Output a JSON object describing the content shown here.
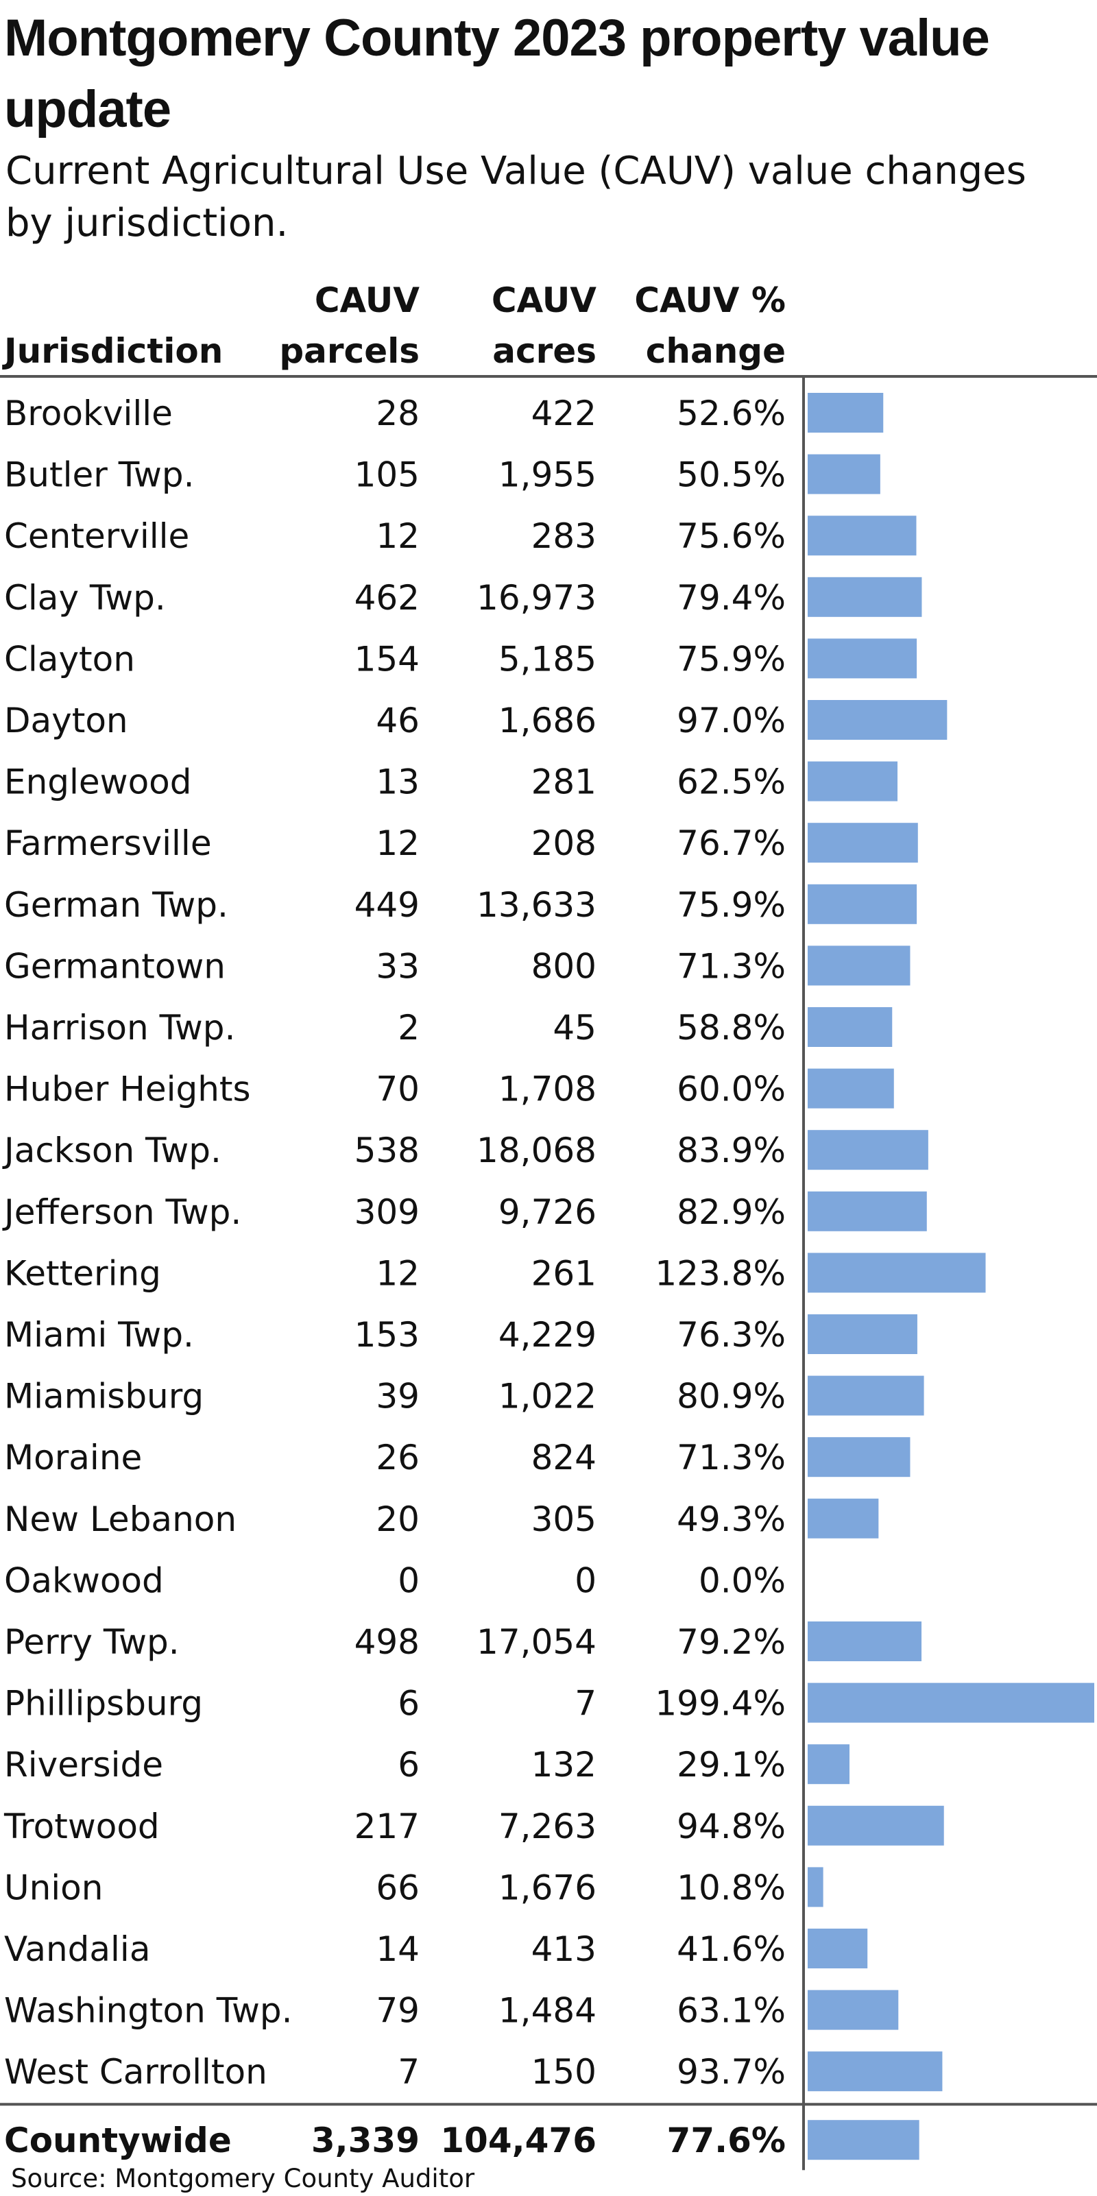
{
  "title": "Montgomery County 2023 property value update",
  "subtitle": "Current Agricultural Use Value (CAUV) value changes by jurisdiction.",
  "source": "Source: Montgomery County Auditor",
  "colors": {
    "bar": "#7ea7dc",
    "text": "#111111",
    "rule": "#555555"
  },
  "chart_data": {
    "type": "table",
    "columns": [
      {
        "lines": [
          "",
          "Jurisdiction"
        ],
        "align": "left"
      },
      {
        "lines": [
          "CAUV",
          "parcels"
        ],
        "align": "right"
      },
      {
        "lines": [
          "CAUV",
          "acres"
        ],
        "align": "right"
      },
      {
        "lines": [
          "CAUV %",
          "change"
        ],
        "align": "right"
      }
    ],
    "bar_series": "CAUV % change",
    "rows": [
      {
        "jurisdiction": "Brookville",
        "parcels": "28",
        "acres": "422",
        "change": 52.6,
        "change_label": "52.6%"
      },
      {
        "jurisdiction": "Butler Twp.",
        "parcels": "105",
        "acres": "1,955",
        "change": 50.5,
        "change_label": "50.5%"
      },
      {
        "jurisdiction": "Centerville",
        "parcels": "12",
        "acres": "283",
        "change": 75.6,
        "change_label": "75.6%"
      },
      {
        "jurisdiction": "Clay Twp.",
        "parcels": "462",
        "acres": "16,973",
        "change": 79.4,
        "change_label": "79.4%"
      },
      {
        "jurisdiction": "Clayton",
        "parcels": "154",
        "acres": "5,185",
        "change": 75.9,
        "change_label": "75.9%"
      },
      {
        "jurisdiction": "Dayton",
        "parcels": "46",
        "acres": "1,686",
        "change": 97.0,
        "change_label": "97.0%"
      },
      {
        "jurisdiction": "Englewood",
        "parcels": "13",
        "acres": "281",
        "change": 62.5,
        "change_label": "62.5%"
      },
      {
        "jurisdiction": "Farmersville",
        "parcels": "12",
        "acres": "208",
        "change": 76.7,
        "change_label": "76.7%"
      },
      {
        "jurisdiction": "German Twp.",
        "parcels": "449",
        "acres": "13,633",
        "change": 75.9,
        "change_label": "75.9%"
      },
      {
        "jurisdiction": "Germantown",
        "parcels": "33",
        "acres": "800",
        "change": 71.3,
        "change_label": "71.3%"
      },
      {
        "jurisdiction": "Harrison Twp.",
        "parcels": "2",
        "acres": "45",
        "change": 58.8,
        "change_label": "58.8%"
      },
      {
        "jurisdiction": "Huber Heights",
        "parcels": "70",
        "acres": "1,708",
        "change": 60.0,
        "change_label": "60.0%"
      },
      {
        "jurisdiction": "Jackson Twp.",
        "parcels": "538",
        "acres": "18,068",
        "change": 83.9,
        "change_label": "83.9%"
      },
      {
        "jurisdiction": "Jefferson Twp.",
        "parcels": "309",
        "acres": "9,726",
        "change": 82.9,
        "change_label": "82.9%"
      },
      {
        "jurisdiction": "Kettering",
        "parcels": "12",
        "acres": "261",
        "change": 123.8,
        "change_label": "123.8%"
      },
      {
        "jurisdiction": "Miami Twp.",
        "parcels": "153",
        "acres": "4,229",
        "change": 76.3,
        "change_label": "76.3%"
      },
      {
        "jurisdiction": "Miamisburg",
        "parcels": "39",
        "acres": "1,022",
        "change": 80.9,
        "change_label": "80.9%"
      },
      {
        "jurisdiction": "Moraine",
        "parcels": "26",
        "acres": "824",
        "change": 71.3,
        "change_label": "71.3%"
      },
      {
        "jurisdiction": "New Lebanon",
        "parcels": "20",
        "acres": "305",
        "change": 49.3,
        "change_label": "49.3%"
      },
      {
        "jurisdiction": "Oakwood",
        "parcels": "0",
        "acres": "0",
        "change": 0.0,
        "change_label": "0.0%"
      },
      {
        "jurisdiction": "Perry Twp.",
        "parcels": "498",
        "acres": "17,054",
        "change": 79.2,
        "change_label": "79.2%"
      },
      {
        "jurisdiction": "Phillipsburg",
        "parcels": "6",
        "acres": "7",
        "change": 199.4,
        "change_label": "199.4%"
      },
      {
        "jurisdiction": "Riverside",
        "parcels": "6",
        "acres": "132",
        "change": 29.1,
        "change_label": "29.1%"
      },
      {
        "jurisdiction": "Trotwood",
        "parcels": "217",
        "acres": "7,263",
        "change": 94.8,
        "change_label": "94.8%"
      },
      {
        "jurisdiction": "Union",
        "parcels": "66",
        "acres": "1,676",
        "change": 10.8,
        "change_label": "10.8%"
      },
      {
        "jurisdiction": "Vandalia",
        "parcels": "14",
        "acres": "413",
        "change": 41.6,
        "change_label": "41.6%"
      },
      {
        "jurisdiction": "Washington Twp.",
        "parcels": "79",
        "acres": "1,484",
        "change": 63.1,
        "change_label": "63.1%"
      },
      {
        "jurisdiction": "West Carrollton",
        "parcels": "7",
        "acres": "150",
        "change": 93.7,
        "change_label": "93.7%"
      }
    ],
    "total": {
      "jurisdiction": "Countywide",
      "parcels": "3,339",
      "acres": "104,476",
      "change": 77.6,
      "change_label": "77.6%"
    },
    "xlim": [
      0,
      199.4
    ]
  }
}
